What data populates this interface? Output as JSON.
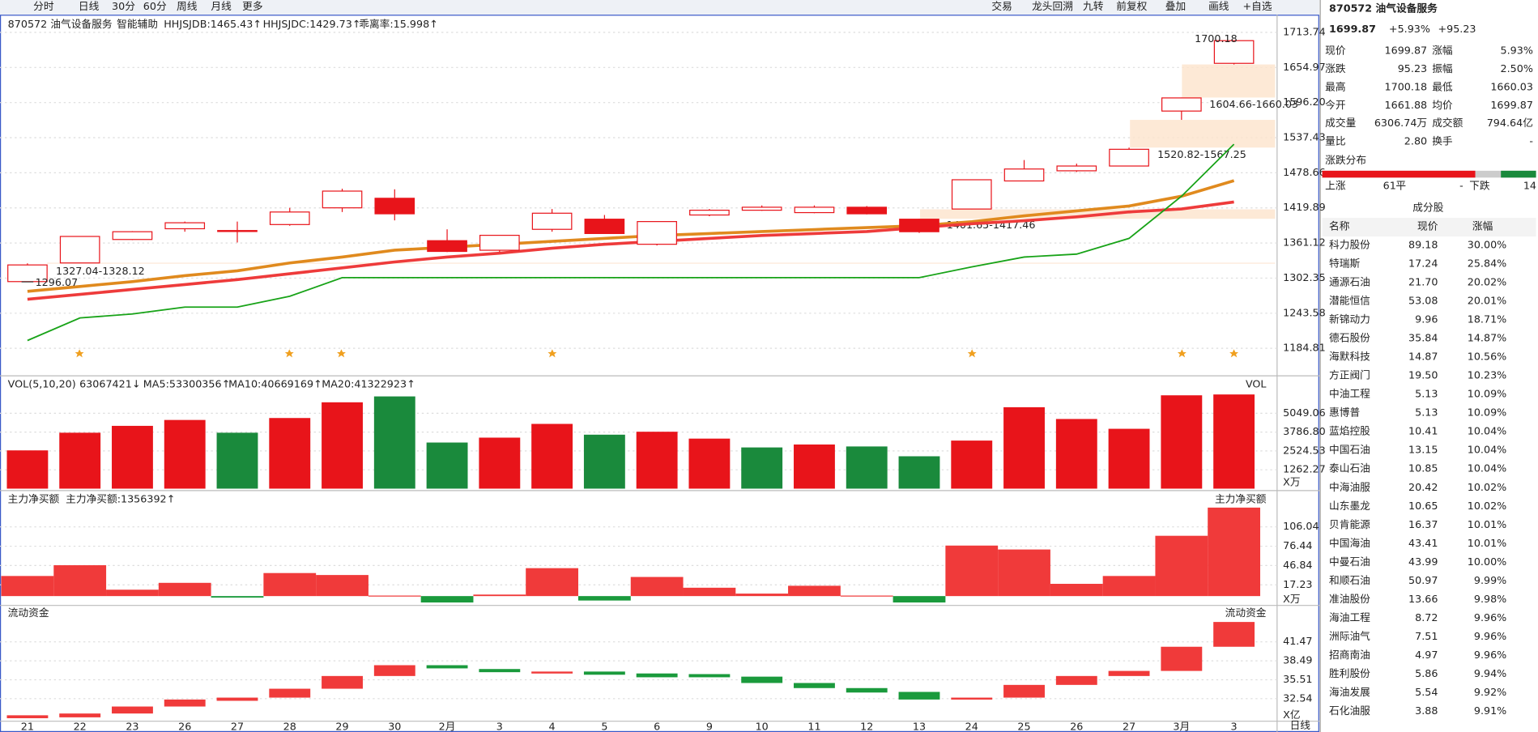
{
  "toolbar": {
    "left": [
      "分时",
      "日线",
      "30分",
      "60分",
      "周线",
      "月线",
      "更多"
    ],
    "right": [
      "交易",
      "龙头回溯",
      "九转",
      "前复权",
      "叠加",
      "画线",
      "+自选"
    ]
  },
  "header": {
    "code_name": "870572 油气设备服务",
    "price": "1699.87",
    "change_pct": "+5.93%",
    "change": "+95.23"
  },
  "quote": {
    "rows": [
      [
        "现价",
        "1699.87",
        "涨幅",
        "5.93%"
      ],
      [
        "涨跌",
        "95.23",
        "振幅",
        "2.50%"
      ],
      [
        "最高",
        "1700.18",
        "最低",
        "1660.03"
      ],
      [
        "今开",
        "1661.88",
        "均价",
        "1699.87"
      ],
      [
        "成交量",
        "6306.74万",
        "成交额",
        "794.64亿"
      ],
      [
        "量比",
        "2.80",
        "换手",
        "-"
      ]
    ]
  },
  "distribution": {
    "title": "涨跌分布",
    "up_label": "上涨",
    "up": 61,
    "flat_label": "平",
    "flat": "-",
    "down_label": "下跌",
    "down": 14,
    "up_color": "#e8141a",
    "down_color": "#1a8a3c"
  },
  "components": {
    "title": "成分股",
    "headers": [
      "名称",
      "现价",
      "涨幅"
    ],
    "rows": [
      {
        "name": "科力股份",
        "price": "89.18",
        "change": "30.00%"
      },
      {
        "name": "特瑞斯",
        "price": "17.24",
        "change": "25.84%"
      },
      {
        "name": "通源石油",
        "price": "21.70",
        "change": "20.02%"
      },
      {
        "name": "潜能恒信",
        "price": "53.08",
        "change": "20.01%"
      },
      {
        "name": "新锦动力",
        "price": "9.96",
        "change": "18.71%"
      },
      {
        "name": "德石股份",
        "price": "35.84",
        "change": "14.87%"
      },
      {
        "name": "海默科技",
        "price": "14.87",
        "change": "10.56%"
      },
      {
        "name": "方正阀门",
        "price": "19.50",
        "change": "10.23%"
      },
      {
        "name": "中油工程",
        "price": "5.13",
        "change": "10.09%"
      },
      {
        "name": "惠博普",
        "price": "5.13",
        "change": "10.09%"
      },
      {
        "name": "蓝焰控股",
        "price": "10.41",
        "change": "10.04%"
      },
      {
        "name": "中国石油",
        "price": "13.15",
        "change": "10.04%"
      },
      {
        "name": "泰山石油",
        "price": "10.85",
        "change": "10.04%"
      },
      {
        "name": "中海油服",
        "price": "20.42",
        "change": "10.02%"
      },
      {
        "name": "山东墨龙",
        "price": "10.65",
        "change": "10.02%"
      },
      {
        "name": "贝肯能源",
        "price": "16.37",
        "change": "10.01%",
        "name_color": "#22b422"
      },
      {
        "name": "中国海油",
        "price": "43.41",
        "change": "10.01%"
      },
      {
        "name": "中曼石油",
        "price": "43.99",
        "change": "10.00%"
      },
      {
        "name": "和顺石油",
        "price": "50.97",
        "change": "9.99%"
      },
      {
        "name": "准油股份",
        "price": "13.66",
        "change": "9.98%"
      },
      {
        "name": "海油工程",
        "price": "8.72",
        "change": "9.96%"
      },
      {
        "name": "洲际油气",
        "price": "7.51",
        "change": "9.96%"
      },
      {
        "name": "招商南油",
        "price": "4.97",
        "change": "9.96%"
      },
      {
        "name": "胜利股份",
        "price": "5.86",
        "change": "9.94%"
      },
      {
        "name": "海油发展",
        "price": "5.54",
        "change": "9.92%"
      },
      {
        "name": "石化油服",
        "price": "3.88",
        "change": "9.91%"
      }
    ]
  },
  "chart_data": [
    {
      "type": "candlestick",
      "title": "870572 油气设备服务",
      "assist": "智能辅助",
      "period": "日线",
      "categories": [
        "21",
        "22",
        "23",
        "26",
        "27",
        "28",
        "29",
        "30",
        "2月",
        "3",
        "4",
        "5",
        "6",
        "9",
        "10",
        "11",
        "12",
        "13",
        "24",
        "25",
        "26",
        "27",
        "3月",
        "3"
      ],
      "open": [
        1296.5,
        1327.7,
        1367,
        1385,
        1381,
        1392,
        1420,
        1436,
        1365,
        1349,
        1384,
        1401,
        1359,
        1408,
        1416,
        1412,
        1421,
        1401,
        1418,
        1465,
        1482,
        1490,
        1582,
        1661.88
      ],
      "high": [
        1327.04,
        1372.1,
        1381,
        1397,
        1397,
        1420,
        1452,
        1451,
        1384,
        1374,
        1418,
        1408,
        1397,
        1418,
        1424,
        1424,
        1423,
        1401.65,
        1467,
        1500,
        1494,
        1520.82,
        1604.66,
        1700.18
      ],
      "low": [
        1296.07,
        1328.12,
        1366,
        1380,
        1362,
        1390,
        1413,
        1399,
        1346,
        1346,
        1380,
        1377,
        1357,
        1406,
        1415,
        1411,
        1409,
        1378,
        1417.46,
        1465,
        1480,
        1490,
        1567.25,
        1660.03
      ],
      "close": [
        1324.4,
        1372.1,
        1380,
        1395,
        1382,
        1413,
        1448,
        1410,
        1347,
        1374,
        1411,
        1377,
        1397,
        1416,
        1421,
        1421,
        1410,
        1380,
        1467,
        1485,
        1490,
        1518,
        1604,
        1699.87
      ],
      "color": "#e8141a",
      "lowest": 1296.07,
      "highest": 1700.18,
      "gaps": [
        {
          "label": "1327.04-1328.12",
          "low": 1327.04,
          "high": 1328.12
        },
        {
          "label": "1520.82-1567.25",
          "low": 1520.82,
          "high": 1567.25
        },
        {
          "label": "1604.66-1660.03",
          "low": 1604.66,
          "high": 1660.03
        },
        {
          "label": "1401.65-1417.46",
          "low": 1401.65,
          "high": 1417.46
        }
      ],
      "indicators": [
        {
          "label": "HHJSJDB:1465.43↑",
          "color": "#e08a1e"
        },
        {
          "label": "HHJSJDC:1429.73↑",
          "color": "#e8141a"
        },
        {
          "label": "乖离率:15.998↑",
          "color": "#e08a1e"
        }
      ],
      "series": [
        {
          "color": "#e08a1e",
          "values": [
            1280.1,
            1288.3,
            1296.5,
            1306.4,
            1314.6,
            1327.7,
            1337.6,
            1349.1,
            1354.0,
            1358.9,
            1363.9,
            1368.8,
            1373.7,
            1377.0,
            1380.3,
            1383.6,
            1386.9,
            1390.1,
            1396.7,
            1406.6,
            1414.8,
            1423.0,
            1439.4,
            1465.43
          ]
        },
        {
          "color": "#ee3b3b",
          "values": [
            1266.9,
            1275.1,
            1283.4,
            1291.6,
            1299.8,
            1309.6,
            1319.5,
            1329.4,
            1337.6,
            1344.1,
            1352.4,
            1358.9,
            1363.9,
            1368.8,
            1373.7,
            1377.0,
            1380.3,
            1386.9,
            1393.4,
            1398.4,
            1404.9,
            1413.1,
            1418.1,
            1429.73
          ]
        },
        {
          "color": "#18a318",
          "values": [
            1197.9,
            1235.7,
            1242.3,
            1253.8,
            1253.8,
            1271.9,
            1303.1,
            1303.1,
            1303.1,
            1303.1,
            1303.1,
            1303.1,
            1303.1,
            1303.1,
            1303.1,
            1303.1,
            1303.1,
            1303.1,
            1321.1,
            1337.6,
            1342.5,
            1368.8,
            1439.4,
            1526.5
          ]
        }
      ],
      "ylim": [
        1143.7,
        1740.0
      ],
      "yticks": [
        1184.81,
        1243.58,
        1302.35,
        1361.12,
        1419.89,
        1478.66,
        1537.43,
        {
          "value": 1596.2,
          "label": "1596.20"
        },
        1654.97,
        1713.74
      ],
      "grid": true
    },
    {
      "type": "bar",
      "title": "VOL(5,10,20)",
      "axis_name": "VOL",
      "unit": "X万",
      "legend": [
        {
          "label": "63067421↓",
          "color": "#1a8a3c"
        },
        {
          "label": "MA5:53300356↑",
          "color": "#e08a1e"
        },
        {
          "label": "MA10:40669169↑",
          "color": "#d61ad6"
        },
        {
          "label": "MA20:41322923↑",
          "color": "#18a318"
        }
      ],
      "values": [
        2562,
        3745,
        4205,
        4599,
        3745,
        4730,
        5782,
        6176,
        3088,
        3416,
        4336,
        3614,
        3811,
        3351,
        2759,
        2957,
        2825,
        2168,
        3219,
        5453,
        4665,
        4008,
        6250,
        6306.74
      ],
      "colors": [
        "#e8141a",
        "#e8141a",
        "#e8141a",
        "#e8141a",
        "#1a8a3c",
        "#e8141a",
        "#e8141a",
        "#1a8a3c",
        "#1a8a3c",
        "#e8141a",
        "#e8141a",
        "#1a8a3c",
        "#e8141a",
        "#e8141a",
        "#1a8a3c",
        "#e8141a",
        "#1a8a3c",
        "#1a8a3c",
        "#e8141a",
        "#e8141a",
        "#e8141a",
        "#e8141a",
        "#e8141a",
        "#e8141a"
      ],
      "ylim": [
        0,
        7490
      ],
      "yticks": [
        1262.27,
        2524.53,
        {
          "value": 3786.8,
          "label": "3786.80"
        },
        5049.06
      ],
      "grid": true
    },
    {
      "type": "bar",
      "title": "主力净买额",
      "axis_name": "主力净买额",
      "unit": "X万",
      "legend": [
        {
          "label": "主力净买额:1356392↑",
          "color": "#e8141a"
        }
      ],
      "values": [
        30.8,
        47.3,
        9.8,
        20.3,
        -2.3,
        35.3,
        32.3,
        0.8,
        -9.8,
        2.3,
        42.8,
        -6.8,
        29.3,
        12.8,
        3.8,
        15.8,
        0.8,
        -9.8,
        77.4,
        71.4,
        18.8,
        30.8,
        92.4,
        135.6
      ],
      "pos_color": "#f03a3a",
      "neg_color": "#1a9a3c",
      "ylim": [
        -14.3,
        157.1
      ],
      "yticks": [
        17.23,
        46.84,
        76.44,
        106.04
      ],
      "grid": true
    },
    {
      "type": "floating-bar",
      "title": "流动资金",
      "axis_name": "流动资金",
      "unit": "X亿",
      "start": [
        29.46,
        29.6,
        30.2,
        31.3,
        32.2,
        32.7,
        34.1,
        36.1,
        37.8,
        37.2,
        36.6,
        36.8,
        36.5,
        36.4,
        36.0,
        35.0,
        34.2,
        33.6,
        32.4,
        32.7,
        34.7,
        36.1,
        36.9,
        40.7
      ],
      "end": [
        29.92,
        30.2,
        31.3,
        32.4,
        32.7,
        34.1,
        36.1,
        37.8,
        37.3,
        36.7,
        36.8,
        36.3,
        35.9,
        35.9,
        35.0,
        34.2,
        33.5,
        32.4,
        32.7,
        34.7,
        36.1,
        36.9,
        40.7,
        44.6
      ],
      "pos_color": "#f03a3a",
      "neg_color": "#1a9a3c",
      "ylim": [
        28.99,
        46.74
      ],
      "yticks": [
        32.54,
        35.51,
        38.49,
        41.47
      ],
      "grid": true
    }
  ]
}
